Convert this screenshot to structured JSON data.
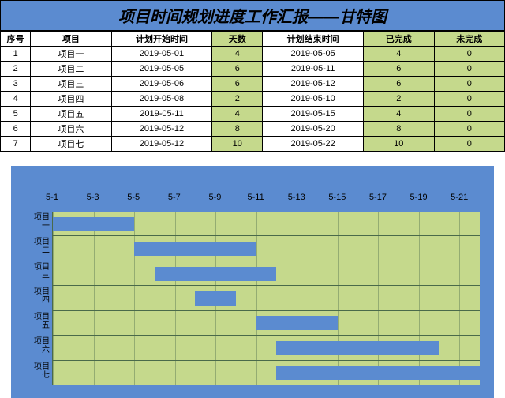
{
  "title": "项目时间规划进度工作汇报——甘特图",
  "columns": [
    "序号",
    "项目",
    "计划开始时间",
    "天数",
    "计划结束时间",
    "已完成",
    "未完成"
  ],
  "highlighted_cols": [
    3,
    5,
    6
  ],
  "rows": [
    {
      "no": "1",
      "name": "项目一",
      "start": "2019-05-01",
      "days": "4",
      "end": "2019-05-05",
      "done": "4",
      "undone": "0"
    },
    {
      "no": "2",
      "name": "项目二",
      "start": "2019-05-05",
      "days": "6",
      "end": "2019-05-11",
      "done": "6",
      "undone": "0"
    },
    {
      "no": "3",
      "name": "项目三",
      "start": "2019-05-06",
      "days": "6",
      "end": "2019-05-12",
      "done": "6",
      "undone": "0"
    },
    {
      "no": "4",
      "name": "项目四",
      "start": "2019-05-08",
      "days": "2",
      "end": "2019-05-10",
      "done": "2",
      "undone": "0"
    },
    {
      "no": "5",
      "name": "项目五",
      "start": "2019-05-11",
      "days": "4",
      "end": "2019-05-15",
      "done": "4",
      "undone": "0"
    },
    {
      "no": "6",
      "name": "项目六",
      "start": "2019-05-12",
      "days": "8",
      "end": "2019-05-20",
      "done": "8",
      "undone": "0"
    },
    {
      "no": "7",
      "name": "项目七",
      "start": "2019-05-12",
      "days": "10",
      "end": "2019-05-22",
      "done": "10",
      "undone": "0"
    }
  ],
  "chart": {
    "type": "gantt",
    "x_min": 1,
    "x_max": 22,
    "x_ticks": [
      1,
      3,
      5,
      7,
      9,
      11,
      13,
      15,
      17,
      19,
      21
    ],
    "x_labels": [
      "5-1",
      "5-3",
      "5-5",
      "5-7",
      "5-9",
      "5-11",
      "5-13",
      "5-15",
      "5-17",
      "5-19",
      "5-21"
    ],
    "y_labels": [
      "项目一",
      "项目二",
      "项目三",
      "项目四",
      "项目五",
      "项目六",
      "项目七"
    ],
    "bars": [
      {
        "start": 1,
        "len": 4
      },
      {
        "start": 5,
        "len": 6
      },
      {
        "start": 6,
        "len": 6
      },
      {
        "start": 8,
        "len": 2
      },
      {
        "start": 11,
        "len": 4
      },
      {
        "start": 12,
        "len": 8
      },
      {
        "start": 12,
        "len": 10
      }
    ],
    "bar_color": "#5b8bd0",
    "plot_bg": "#c5d98c",
    "outer_bg": "#5b8bd0",
    "grid_color": "#4a6a4a",
    "title_fontsize": 20,
    "tick_fontsize": 11
  },
  "colors": {
    "header_bg": "#5b8bd0",
    "highlight_bg": "#c5d98c",
    "border": "#000000"
  }
}
